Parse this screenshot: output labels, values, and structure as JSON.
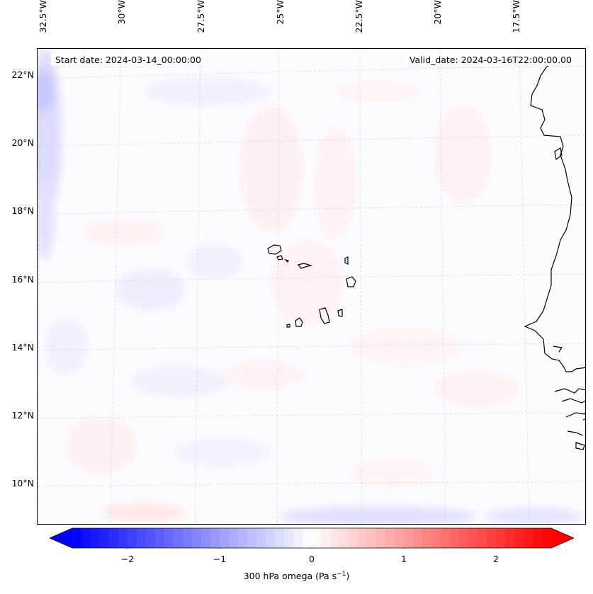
{
  "map": {
    "annotations": {
      "start_date": "Start date: 2024-03-14_00:00:00",
      "valid_date": "Valid_date: 2024-03-16T22:00:00.00"
    },
    "lon_labels": [
      "32.5°W",
      "30°W",
      "27.5°W",
      "25°W",
      "22.5°W",
      "20°W",
      "17.5°W"
    ],
    "lat_labels": [
      "22°N",
      "20°N",
      "18°N",
      "16°N",
      "14°N",
      "12°N",
      "10°N"
    ],
    "gridlines": true,
    "features": [
      "coastline-west-africa",
      "cape-verde-islands"
    ]
  },
  "colorbar": {
    "label_prefix": "300 hPa omega (Pa s",
    "label_exponent": "−1",
    "label_suffix": ")",
    "ticks": [
      "−2",
      "−1",
      "0",
      "1",
      "2"
    ],
    "tick_values": [
      -2,
      -1,
      0,
      1,
      2
    ],
    "range": [
      -2.6,
      2.6
    ],
    "colormap": "bwr",
    "color_min": "#0000ff",
    "color_mid": "#ffffff",
    "color_max": "#ff0000",
    "extend": "both"
  }
}
